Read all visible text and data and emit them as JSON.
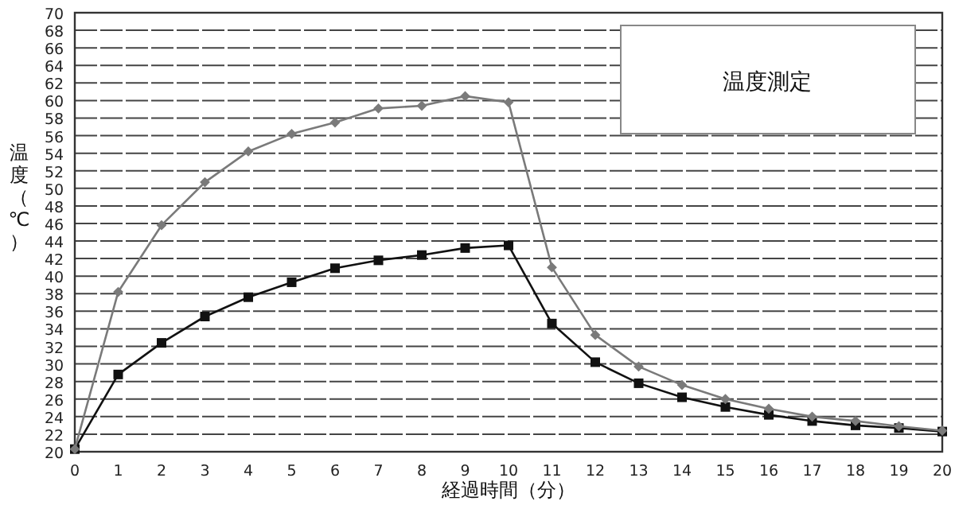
{
  "chart_data": {
    "type": "line",
    "title": "温度測定",
    "xlabel": "経過時間（分）",
    "ylabel": "温度（℃）",
    "x": [
      0,
      1,
      2,
      3,
      4,
      5,
      6,
      7,
      8,
      9,
      10,
      11,
      12,
      13,
      14,
      15,
      16,
      17,
      18,
      19,
      20
    ],
    "series": [
      {
        "color": "#7a7a7a",
        "marker": "diamond",
        "values": [
          20.3,
          38.2,
          45.8,
          50.7,
          54.2,
          56.2,
          57.5,
          59.1,
          59.4,
          60.5,
          59.8,
          41.0,
          33.3,
          29.7,
          27.6,
          26.0,
          24.9,
          24.0,
          23.5,
          22.9,
          22.4
        ]
      },
      {
        "color": "#111111",
        "marker": "square",
        "values": [
          20.3,
          28.8,
          32.4,
          35.4,
          37.6,
          39.3,
          40.9,
          41.8,
          42.4,
          43.2,
          43.5,
          34.6,
          30.2,
          27.8,
          26.2,
          25.1,
          24.2,
          23.5,
          23.0,
          22.7,
          22.3
        ]
      }
    ],
    "xlim": [
      0,
      20
    ],
    "xticks": [
      0,
      1,
      2,
      3,
      4,
      5,
      6,
      7,
      8,
      9,
      10,
      11,
      12,
      13,
      14,
      15,
      16,
      17,
      18,
      19,
      20
    ],
    "ylim": [
      20,
      70
    ],
    "yticks": [
      20,
      22,
      24,
      26,
      28,
      30,
      32,
      34,
      36,
      38,
      40,
      42,
      44,
      46,
      48,
      50,
      52,
      54,
      56,
      58,
      60,
      62,
      64,
      66,
      68,
      70
    ],
    "grid": "y",
    "line_style": "solid"
  }
}
